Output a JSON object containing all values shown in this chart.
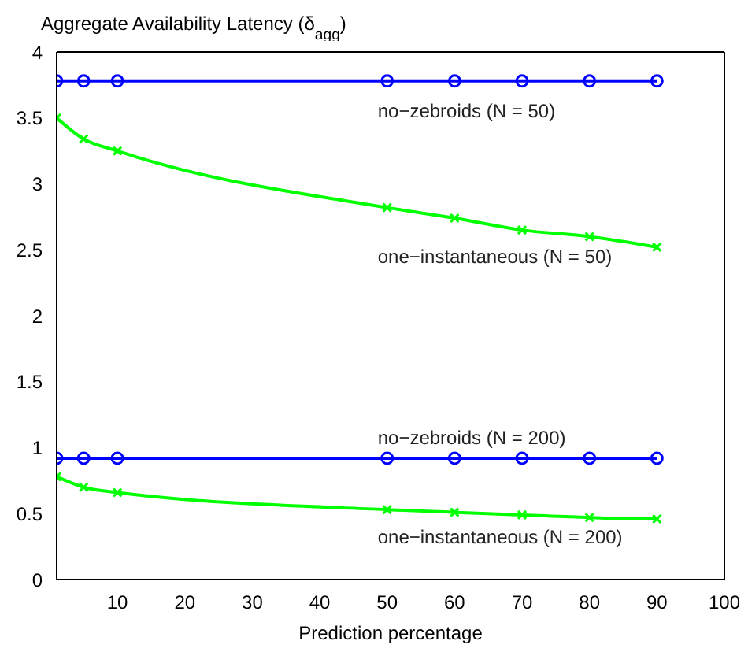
{
  "chart_data": {
    "type": "line",
    "title": "Aggregate Availability Latency (δ$_{agg}$)",
    "xlabel": "Prediction percentage",
    "x": [
      1,
      5,
      10,
      50,
      60,
      70,
      80,
      90
    ],
    "series": [
      {
        "name": "no−zebroids (N = 50)",
        "color": "#0000ff",
        "marker": "circle",
        "values": [
          3.78,
          3.78,
          3.78,
          3.78,
          3.78,
          3.78,
          3.78,
          3.78
        ]
      },
      {
        "name": "one−instantaneous (N = 50)",
        "color": "#00ff00",
        "marker": "cross",
        "values": [
          3.5,
          3.34,
          3.25,
          2.82,
          2.74,
          2.65,
          2.6,
          2.52
        ]
      },
      {
        "name": "no−zebroids (N = 200)",
        "color": "#0000ff",
        "marker": "circle",
        "values": [
          0.92,
          0.92,
          0.92,
          0.92,
          0.92,
          0.92,
          0.92,
          0.92
        ]
      },
      {
        "name": "one−instantaneous (N = 200)",
        "color": "#00ff00",
        "marker": "cross",
        "values": [
          0.78,
          0.7,
          0.66,
          0.53,
          0.51,
          0.49,
          0.47,
          0.46
        ]
      }
    ],
    "xlim": [
      1,
      100
    ],
    "xticks": [
      10,
      20,
      30,
      40,
      50,
      60,
      70,
      80,
      90,
      100
    ],
    "ylim": [
      0,
      4
    ],
    "yticks": [
      0,
      0.5,
      1,
      1.5,
      2,
      2.5,
      3,
      3.5,
      4
    ],
    "grid": false,
    "legend": false,
    "line_style": "solid"
  }
}
